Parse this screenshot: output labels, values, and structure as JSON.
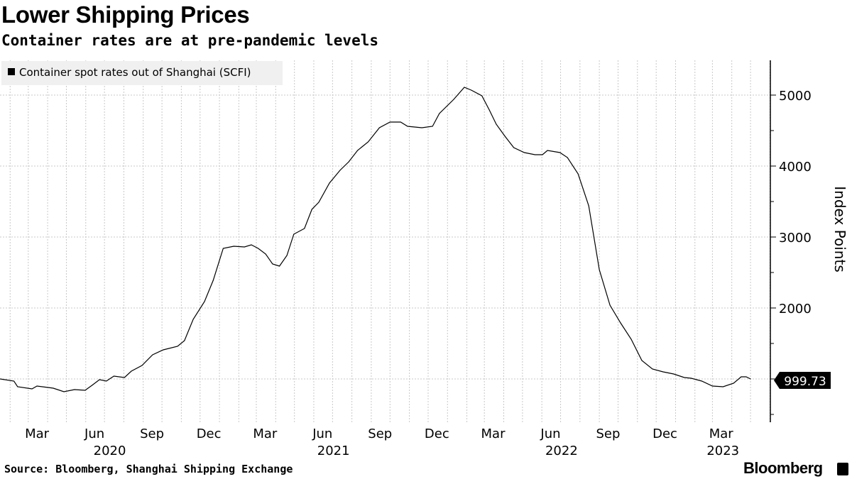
{
  "header": {
    "title": "Lower Shipping Prices",
    "subtitle": "Container rates are at pre-pandemic levels"
  },
  "footer": {
    "source": "Source: Bloomberg, Shanghai Shipping Exchange",
    "brand": "Bloomberg"
  },
  "chart_data": {
    "type": "line",
    "title": "Lower Shipping Prices",
    "subtitle": "Container rates are at pre-pandemic levels",
    "ylabel": "Index Points",
    "xlabel": "",
    "ylim": [
      500,
      5500
    ],
    "yticks": [
      2000,
      3000,
      4000,
      5000
    ],
    "ytick_labels": [
      "2000",
      "3000",
      "4000",
      "5000"
    ],
    "xtick_labels": [
      {
        "date": "2020-03-15",
        "label": "Mar"
      },
      {
        "date": "2020-06-15",
        "label": "Jun"
      },
      {
        "date": "2020-09-15",
        "label": "Sep"
      },
      {
        "date": "2020-12-15",
        "label": "Dec"
      },
      {
        "date": "2021-03-15",
        "label": "Mar"
      },
      {
        "date": "2021-06-15",
        "label": "Jun"
      },
      {
        "date": "2021-09-15",
        "label": "Sep"
      },
      {
        "date": "2021-12-15",
        "label": "Dec"
      },
      {
        "date": "2022-03-15",
        "label": "Mar"
      },
      {
        "date": "2022-06-15",
        "label": "Jun"
      },
      {
        "date": "2022-09-15",
        "label": "Sep"
      },
      {
        "date": "2022-12-15",
        "label": "Dec"
      },
      {
        "date": "2023-03-15",
        "label": "Mar"
      }
    ],
    "year_labels": [
      "2020",
      "2021",
      "2022",
      "2023"
    ],
    "grid": true,
    "legend": {
      "position": "top-left",
      "entries": [
        "Container spot rates out of Shanghai (SCFI)"
      ]
    },
    "last_value_label": "999.73",
    "colors": {
      "line": "#000000",
      "grid": "#c8c8c8",
      "legend_bg": "#f0f0f0"
    },
    "series": [
      {
        "name": "Container spot rates out of Shanghai (SCFI)",
        "points": [
          [
            "2020-01-16",
            1000
          ],
          [
            "2020-02-07",
            970
          ],
          [
            "2020-02-13",
            890
          ],
          [
            "2020-03-07",
            860
          ],
          [
            "2020-03-15",
            900
          ],
          [
            "2020-04-10",
            870
          ],
          [
            "2020-04-27",
            820
          ],
          [
            "2020-05-14",
            850
          ],
          [
            "2020-05-31",
            840
          ],
          [
            "2020-06-11",
            910
          ],
          [
            "2020-06-23",
            990
          ],
          [
            "2020-07-04",
            970
          ],
          [
            "2020-07-16",
            1040
          ],
          [
            "2020-08-02",
            1020
          ],
          [
            "2020-08-13",
            1110
          ],
          [
            "2020-08-30",
            1190
          ],
          [
            "2020-09-16",
            1340
          ],
          [
            "2020-10-03",
            1410
          ],
          [
            "2020-10-26",
            1460
          ],
          [
            "2020-11-06",
            1540
          ],
          [
            "2020-11-20",
            1840
          ],
          [
            "2020-12-08",
            2090
          ],
          [
            "2020-12-22",
            2390
          ],
          [
            "2021-01-07",
            2840
          ],
          [
            "2021-01-24",
            2870
          ],
          [
            "2021-02-10",
            2860
          ],
          [
            "2021-02-21",
            2890
          ],
          [
            "2021-03-04",
            2840
          ],
          [
            "2021-03-16",
            2760
          ],
          [
            "2021-03-27",
            2620
          ],
          [
            "2021-04-07",
            2590
          ],
          [
            "2021-04-19",
            2740
          ],
          [
            "2021-04-30",
            3040
          ],
          [
            "2021-05-17",
            3120
          ],
          [
            "2021-05-29",
            3390
          ],
          [
            "2021-06-09",
            3490
          ],
          [
            "2021-06-26",
            3760
          ],
          [
            "2021-07-13",
            3940
          ],
          [
            "2021-07-27",
            4060
          ],
          [
            "2021-08-10",
            4220
          ],
          [
            "2021-08-27",
            4340
          ],
          [
            "2021-09-14",
            4540
          ],
          [
            "2021-10-01",
            4620
          ],
          [
            "2021-10-18",
            4620
          ],
          [
            "2021-10-29",
            4560
          ],
          [
            "2021-11-21",
            4540
          ],
          [
            "2021-12-08",
            4560
          ],
          [
            "2021-12-19",
            4740
          ],
          [
            "2022-01-11",
            4940
          ],
          [
            "2022-01-28",
            5110
          ],
          [
            "2022-02-08",
            5070
          ],
          [
            "2022-02-25",
            4990
          ],
          [
            "2022-03-09",
            4790
          ],
          [
            "2022-03-20",
            4590
          ],
          [
            "2022-04-03",
            4420
          ],
          [
            "2022-04-17",
            4260
          ],
          [
            "2022-05-04",
            4190
          ],
          [
            "2022-05-21",
            4160
          ],
          [
            "2022-06-02",
            4160
          ],
          [
            "2022-06-10",
            4220
          ],
          [
            "2022-06-30",
            4190
          ],
          [
            "2022-07-12",
            4120
          ],
          [
            "2022-07-29",
            3890
          ],
          [
            "2022-08-15",
            3440
          ],
          [
            "2022-09-01",
            2540
          ],
          [
            "2022-09-18",
            2040
          ],
          [
            "2022-10-05",
            1790
          ],
          [
            "2022-10-22",
            1560
          ],
          [
            "2022-11-08",
            1260
          ],
          [
            "2022-11-25",
            1140
          ],
          [
            "2022-12-12",
            1100
          ],
          [
            "2022-12-29",
            1070
          ],
          [
            "2023-01-15",
            1020
          ],
          [
            "2023-01-26",
            1010
          ],
          [
            "2023-02-12",
            970
          ],
          [
            "2023-03-01",
            900
          ],
          [
            "2023-03-18",
            890
          ],
          [
            "2023-04-04",
            940
          ],
          [
            "2023-04-16",
            1030
          ],
          [
            "2023-04-24",
            1030
          ],
          [
            "2023-05-01",
            999.73
          ]
        ]
      }
    ]
  }
}
